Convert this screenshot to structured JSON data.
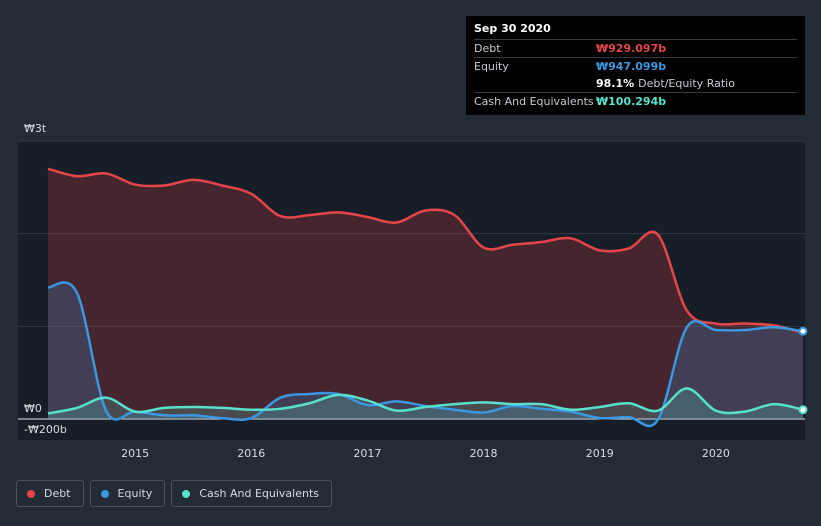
{
  "tooltip": {
    "date": "Sep 30 2020",
    "rows": [
      {
        "label": "Debt",
        "value": "₩929.097b",
        "color": "#e64649"
      },
      {
        "label": "Equity",
        "value": "₩947.099b",
        "color": "#3a97e0"
      },
      {
        "ratio_value": "98.1%",
        "ratio_label": "Debt/Equity Ratio"
      },
      {
        "label": "Cash And Equivalents",
        "value": "₩100.294b",
        "color": "#58e0cc"
      }
    ]
  },
  "legend": [
    {
      "label": "Debt",
      "color": "#e64649"
    },
    {
      "label": "Equity",
      "color": "#3a97e0"
    },
    {
      "label": "Cash And Equivalents",
      "color": "#58e0cc"
    }
  ],
  "chart_data": {
    "type": "line",
    "units": "KRW billions",
    "y_axis_labels": [
      "₩3t",
      "₩0",
      "-₩200b"
    ],
    "ylim": [
      -200,
      3000
    ],
    "xlim": [
      2014.25,
      2020.75
    ],
    "x_ticks": [
      2015,
      2016,
      2017,
      2018,
      2019,
      2020
    ],
    "x_tick_labels": [
      "2015",
      "2016",
      "2017",
      "2018",
      "2019",
      "2020"
    ],
    "grid": true,
    "legend_position": "bottom-left",
    "series": [
      {
        "name": "Debt",
        "color": "#e64649",
        "points": [
          [
            2014.25,
            2700
          ],
          [
            2014.5,
            2620
          ],
          [
            2014.75,
            2650
          ],
          [
            2015.0,
            2530
          ],
          [
            2015.25,
            2520
          ],
          [
            2015.5,
            2580
          ],
          [
            2015.75,
            2520
          ],
          [
            2016.0,
            2430
          ],
          [
            2016.25,
            2190
          ],
          [
            2016.5,
            2200
          ],
          [
            2016.75,
            2230
          ],
          [
            2017.0,
            2180
          ],
          [
            2017.25,
            2120
          ],
          [
            2017.5,
            2250
          ],
          [
            2017.75,
            2200
          ],
          [
            2018.0,
            1850
          ],
          [
            2018.25,
            1880
          ],
          [
            2018.5,
            1910
          ],
          [
            2018.75,
            1950
          ],
          [
            2019.0,
            1820
          ],
          [
            2019.25,
            1840
          ],
          [
            2019.5,
            1990
          ],
          [
            2019.75,
            1170
          ],
          [
            2020.0,
            1030
          ],
          [
            2020.25,
            1030
          ],
          [
            2020.5,
            1010
          ],
          [
            2020.75,
            929.097
          ]
        ]
      },
      {
        "name": "Equity",
        "color": "#3a97e0",
        "points": [
          [
            2014.25,
            1420
          ],
          [
            2014.5,
            1360
          ],
          [
            2014.75,
            90
          ],
          [
            2015.0,
            80
          ],
          [
            2015.25,
            40
          ],
          [
            2015.5,
            40
          ],
          [
            2015.75,
            10
          ],
          [
            2016.0,
            10
          ],
          [
            2016.25,
            230
          ],
          [
            2016.5,
            270
          ],
          [
            2016.75,
            270
          ],
          [
            2017.0,
            150
          ],
          [
            2017.25,
            190
          ],
          [
            2017.5,
            140
          ],
          [
            2017.75,
            100
          ],
          [
            2018.0,
            70
          ],
          [
            2018.25,
            140
          ],
          [
            2018.5,
            110
          ],
          [
            2018.75,
            80
          ],
          [
            2019.0,
            10
          ],
          [
            2019.25,
            20
          ],
          [
            2019.5,
            -10
          ],
          [
            2019.75,
            990
          ],
          [
            2020.0,
            960
          ],
          [
            2020.25,
            960
          ],
          [
            2020.5,
            990
          ],
          [
            2020.75,
            947.099
          ]
        ]
      },
      {
        "name": "Cash And Equivalents",
        "color": "#58e0cc",
        "points": [
          [
            2014.25,
            60
          ],
          [
            2014.5,
            120
          ],
          [
            2014.75,
            230
          ],
          [
            2015.0,
            80
          ],
          [
            2015.25,
            120
          ],
          [
            2015.5,
            130
          ],
          [
            2015.75,
            120
          ],
          [
            2016.0,
            100
          ],
          [
            2016.25,
            110
          ],
          [
            2016.5,
            170
          ],
          [
            2016.75,
            260
          ],
          [
            2017.0,
            200
          ],
          [
            2017.25,
            90
          ],
          [
            2017.5,
            130
          ],
          [
            2017.75,
            160
          ],
          [
            2018.0,
            180
          ],
          [
            2018.25,
            160
          ],
          [
            2018.5,
            160
          ],
          [
            2018.75,
            100
          ],
          [
            2019.0,
            130
          ],
          [
            2019.25,
            170
          ],
          [
            2019.5,
            90
          ],
          [
            2019.75,
            330
          ],
          [
            2020.0,
            90
          ],
          [
            2020.25,
            80
          ],
          [
            2020.5,
            160
          ],
          [
            2020.75,
            100.294
          ]
        ]
      }
    ]
  }
}
